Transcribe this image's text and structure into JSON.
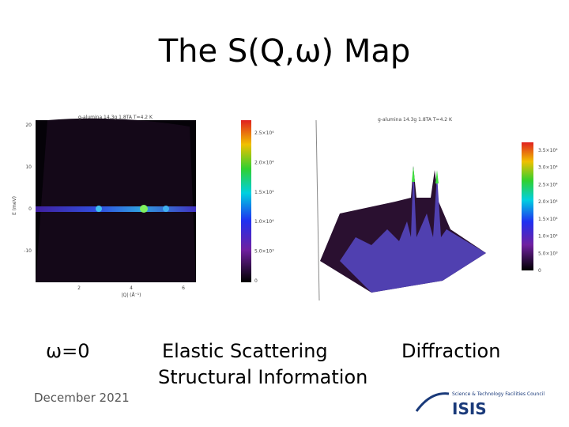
{
  "header": {
    "title": "The S(Q,ω) Map"
  },
  "left_plot": {
    "title": "g-alumina 14.3g 1.8TA T=4.2 K",
    "y_label": "E (meV)",
    "x_label": "|Q| (Å⁻¹)",
    "y_ticks": [
      "20",
      "10",
      "0",
      "-10"
    ],
    "x_ticks": [
      "2",
      "4",
      "6"
    ],
    "colorbar_ticks": [
      "2.5×10⁴",
      "2.0×10⁴",
      "1.5×10⁴",
      "1.0×10⁴",
      "5.0×10³",
      "0"
    ]
  },
  "right_plot": {
    "title": "g-alumina 14.3g 1.8TA T=4.2 K",
    "colorbar_ticks": [
      "3.5×10⁴",
      "3.0×10⁴",
      "2.5×10⁴",
      "2.0×10⁴",
      "1.5×10⁴",
      "1.0×10⁴",
      "5.0×10³",
      "0"
    ]
  },
  "captions": {
    "omega": "ω=0",
    "elastic": "Elastic Scattering",
    "diffraction": "Diffraction",
    "structural": "Structural Information"
  },
  "footer": {
    "date": "December 2021",
    "logo_org": "Science & Technology Facilities Council",
    "logo_name": "ISIS"
  }
}
